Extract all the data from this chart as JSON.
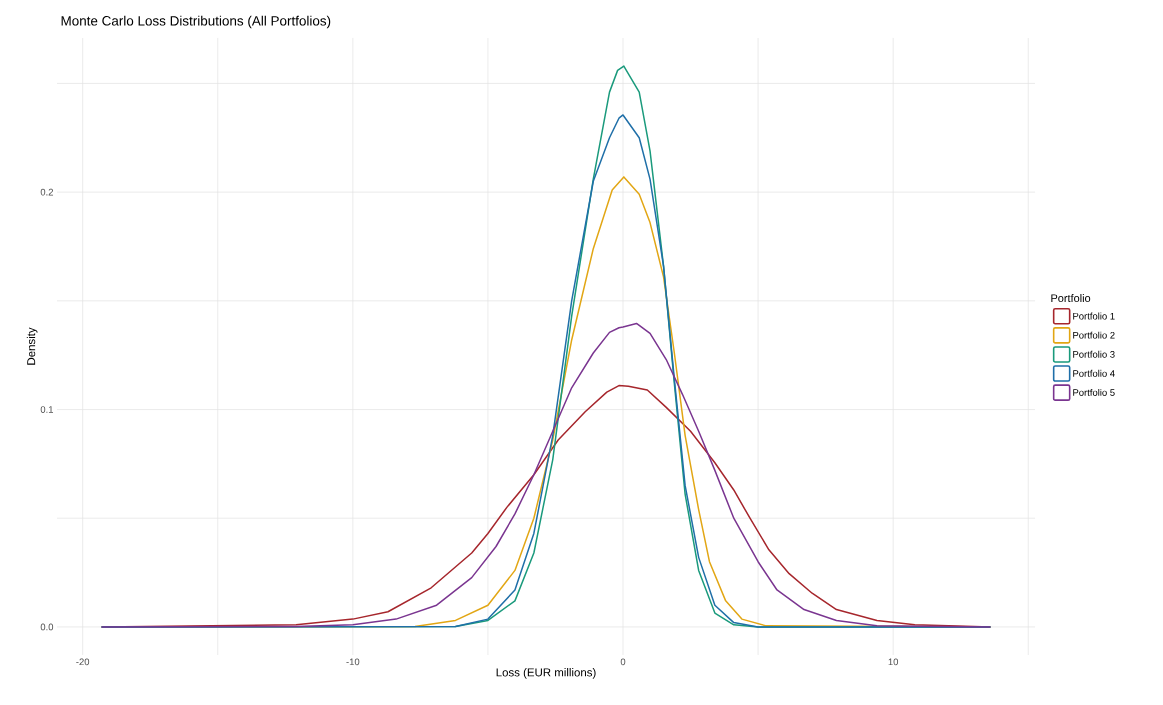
{
  "chart_data": {
    "type": "line",
    "title": "Monte Carlo Loss Distributions (All Portfolios)",
    "xlabel": "Loss (EUR millions)",
    "ylabel": "Density",
    "legend_title": "Portfolio",
    "legend": "right",
    "grid": true,
    "xlim": [
      -20.95,
      15.25
    ],
    "ylim": [
      -0.0129,
      0.2709
    ],
    "xticks": [
      {
        "value": -20,
        "label": "-20"
      },
      {
        "value": -15,
        "label": null
      },
      {
        "value": -10,
        "label": "-10"
      },
      {
        "value": -5,
        "label": null
      },
      {
        "value": 0,
        "label": "0"
      },
      {
        "value": 5,
        "label": null
      },
      {
        "value": 10,
        "label": "10"
      },
      {
        "value": 15,
        "label": null
      }
    ],
    "yticks": [
      {
        "value": 0,
        "label": "0.0"
      },
      {
        "value": 0.05,
        "label": null
      },
      {
        "value": 0.1,
        "label": "0.1"
      },
      {
        "value": 0.15,
        "label": null
      },
      {
        "value": 0.2,
        "label": "0.2"
      },
      {
        "value": 0.25,
        "label": null
      }
    ],
    "series": [
      {
        "name": "Portfolio 1",
        "color": "#a6262c",
        "x": [
          -19.3,
          -12.1,
          -10,
          -8.7,
          -7.1,
          -5.6,
          -5,
          -4.3,
          -3.3,
          -2.4,
          -1.4,
          -0.6,
          -0.15,
          0.2,
          0.9,
          1.6,
          2.5,
          3.4,
          4.1,
          4.7,
          5.4,
          6.15,
          7.0,
          7.9,
          9.4,
          10.8,
          13.6
        ],
        "values": [
          0,
          0.001,
          0.0036,
          0.007,
          0.018,
          0.034,
          0.043,
          0.055,
          0.07,
          0.086,
          0.099,
          0.108,
          0.111,
          0.1107,
          0.109,
          0.101,
          0.09,
          0.0755,
          0.063,
          0.05,
          0.0355,
          0.0245,
          0.0155,
          0.008,
          0.003,
          0.001,
          0
        ]
      },
      {
        "name": "Portfolio 2",
        "color": "#e2a614",
        "x": [
          -19.3,
          -7.7,
          -6.2,
          -5,
          -4.0,
          -3.3,
          -2.6,
          -1.9,
          -1.1,
          -0.4,
          0.03,
          0.6,
          1.0,
          1.5,
          1.9,
          2.3,
          2.8,
          3.2,
          3.8,
          4.4,
          5.3,
          13.6
        ],
        "values": [
          0,
          0.0002,
          0.003,
          0.01,
          0.026,
          0.05,
          0.086,
          0.132,
          0.174,
          0.201,
          0.207,
          0.199,
          0.186,
          0.161,
          0.126,
          0.088,
          0.054,
          0.03,
          0.012,
          0.0036,
          0.0005,
          0
        ]
      },
      {
        "name": "Portfolio 3",
        "color": "#1a9a7c",
        "x": [
          -19.3,
          -6.2,
          -5,
          -4.0,
          -3.3,
          -2.6,
          -1.9,
          -1.1,
          -0.5,
          -0.2,
          0.03,
          0.6,
          1.0,
          1.5,
          1.9,
          2.3,
          2.8,
          3.4,
          4.1,
          5.0,
          13.6
        ],
        "values": [
          0,
          0.0002,
          0.003,
          0.012,
          0.034,
          0.077,
          0.143,
          0.206,
          0.246,
          0.256,
          0.258,
          0.246,
          0.219,
          0.166,
          0.112,
          0.061,
          0.026,
          0.0064,
          0.001,
          0,
          0
        ]
      },
      {
        "name": "Portfolio 4",
        "color": "#1f6fa8",
        "x": [
          -19.3,
          -6.2,
          -5,
          -4.0,
          -3.3,
          -2.6,
          -1.9,
          -1.1,
          -0.5,
          -0.15,
          0.0,
          0.6,
          1.0,
          1.5,
          1.9,
          2.3,
          2.8,
          3.4,
          4.1,
          5.0,
          13.6
        ],
        "values": [
          0,
          0.0002,
          0.0036,
          0.017,
          0.043,
          0.088,
          0.15,
          0.205,
          0.225,
          0.234,
          0.2355,
          0.225,
          0.206,
          0.166,
          0.114,
          0.065,
          0.032,
          0.01,
          0.002,
          0,
          0
        ]
      },
      {
        "name": "Portfolio 5",
        "color": "#7a3590",
        "x": [
          -19.3,
          -12.1,
          -10,
          -8.4,
          -6.9,
          -5.6,
          -4.7,
          -4.0,
          -3.3,
          -2.6,
          -1.9,
          -1.1,
          -0.5,
          -0.15,
          0.0,
          0.5,
          1.0,
          1.6,
          2.2,
          2.8,
          3.4,
          4.1,
          5.0,
          5.7,
          6.7,
          7.9,
          9.4,
          13.6
        ],
        "values": [
          0,
          0.0002,
          0.001,
          0.0036,
          0.01,
          0.0227,
          0.037,
          0.052,
          0.07,
          0.09,
          0.11,
          0.126,
          0.1355,
          0.1376,
          0.138,
          0.1396,
          0.135,
          0.123,
          0.107,
          0.09,
          0.072,
          0.05,
          0.03,
          0.017,
          0.008,
          0.003,
          0.0005,
          0
        ]
      }
    ]
  }
}
